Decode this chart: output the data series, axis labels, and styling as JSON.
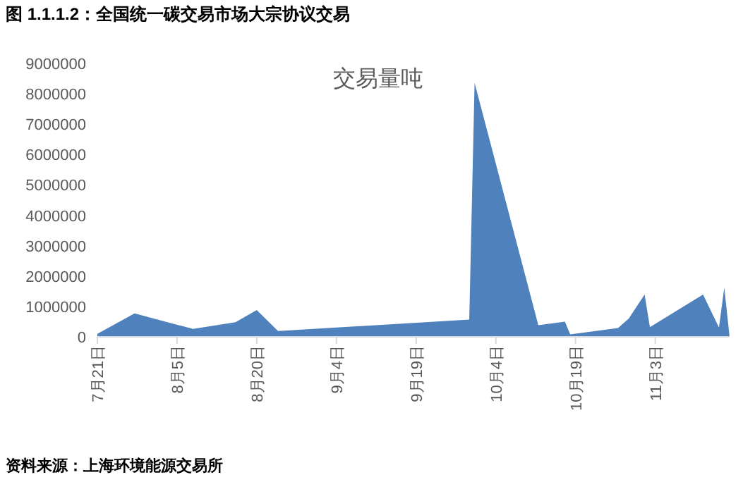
{
  "chart_data": {
    "type": "area",
    "title": "图 1.1.1.2：全国统一碳交易市场大宗协议交易",
    "subtitle": "交易量吨",
    "annotations": [
      "资料来源：上海环境能源交易所"
    ],
    "x": [
      "--07-21",
      "--07-28",
      "--08-08",
      "--08-16",
      "--08-20",
      "--08-24",
      "--09-29",
      "--09-30",
      "--10-12",
      "--10-17",
      "--10-18",
      "--10-27",
      "--10-29",
      "--11-01",
      "--11-02",
      "--11-12",
      "--11-15",
      "--11-16",
      "--11-17"
    ],
    "series": [
      {
        "color": "#4f81bd",
        "values": [
          100000,
          770000,
          260000,
          480000,
          880000,
          190000,
          570000,
          8360000,
          380000,
          500000,
          80000,
          290000,
          600000,
          1390000,
          320000,
          1390000,
          310000,
          1620000,
          0
        ]
      }
    ],
    "xlim": [
      "--07-21",
      "--11-17"
    ],
    "xticks": [
      {
        "value": "--07-21",
        "label": "7月21日"
      },
      {
        "value": "--08-05",
        "label": "8月5日"
      },
      {
        "value": "--08-20",
        "label": "8月20日"
      },
      {
        "value": "--09-04",
        "label": "9月4日"
      },
      {
        "value": "--09-19",
        "label": "9月19日"
      },
      {
        "value": "--10-04",
        "label": "10月4日"
      },
      {
        "value": "--10-19",
        "label": "10月19日"
      },
      {
        "value": "--11-03",
        "label": "11月3日"
      }
    ],
    "ylim": [
      0,
      9000000
    ],
    "yticks": [
      0,
      1000000,
      2000000,
      3000000,
      4000000,
      5000000,
      6000000,
      7000000,
      8000000,
      9000000
    ],
    "grid": false
  }
}
